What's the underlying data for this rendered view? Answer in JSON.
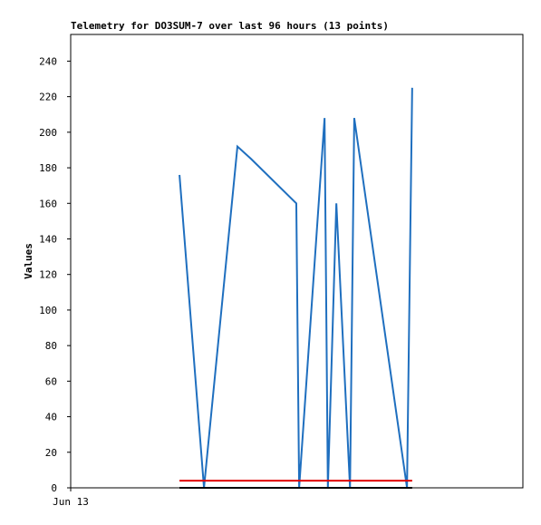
{
  "chart_data": {
    "type": "line",
    "title": "Telemetry for DO3SUM-7 over last 96 hours (13 points)",
    "y_label": "Values",
    "xlim": [
      0,
      96
    ],
    "xticks": [
      {
        "value": 0,
        "label": "Jun 13"
      }
    ],
    "ylim": [
      0,
      255
    ],
    "yticks": [
      0,
      20,
      40,
      60,
      80,
      100,
      120,
      140,
      160,
      180,
      200,
      220,
      240
    ],
    "series": [
      {
        "color": "#1f6fbf",
        "x": [
          23.1,
          28.3,
          35.4,
          38.3,
          47.9,
          48.5,
          53.9,
          54.6,
          56.4,
          59.3,
          60.2,
          71.4,
          72.5
        ],
        "values": [
          176,
          0,
          192,
          185,
          160,
          0,
          208,
          0,
          160,
          0,
          208,
          0,
          225
        ]
      },
      {
        "color": "#e00000",
        "x": [
          23.1,
          72.5
        ],
        "values": [
          4,
          4
        ]
      },
      {
        "color": "#000000",
        "x": [
          23.1,
          72.5
        ],
        "values": [
          0,
          0
        ]
      }
    ]
  }
}
